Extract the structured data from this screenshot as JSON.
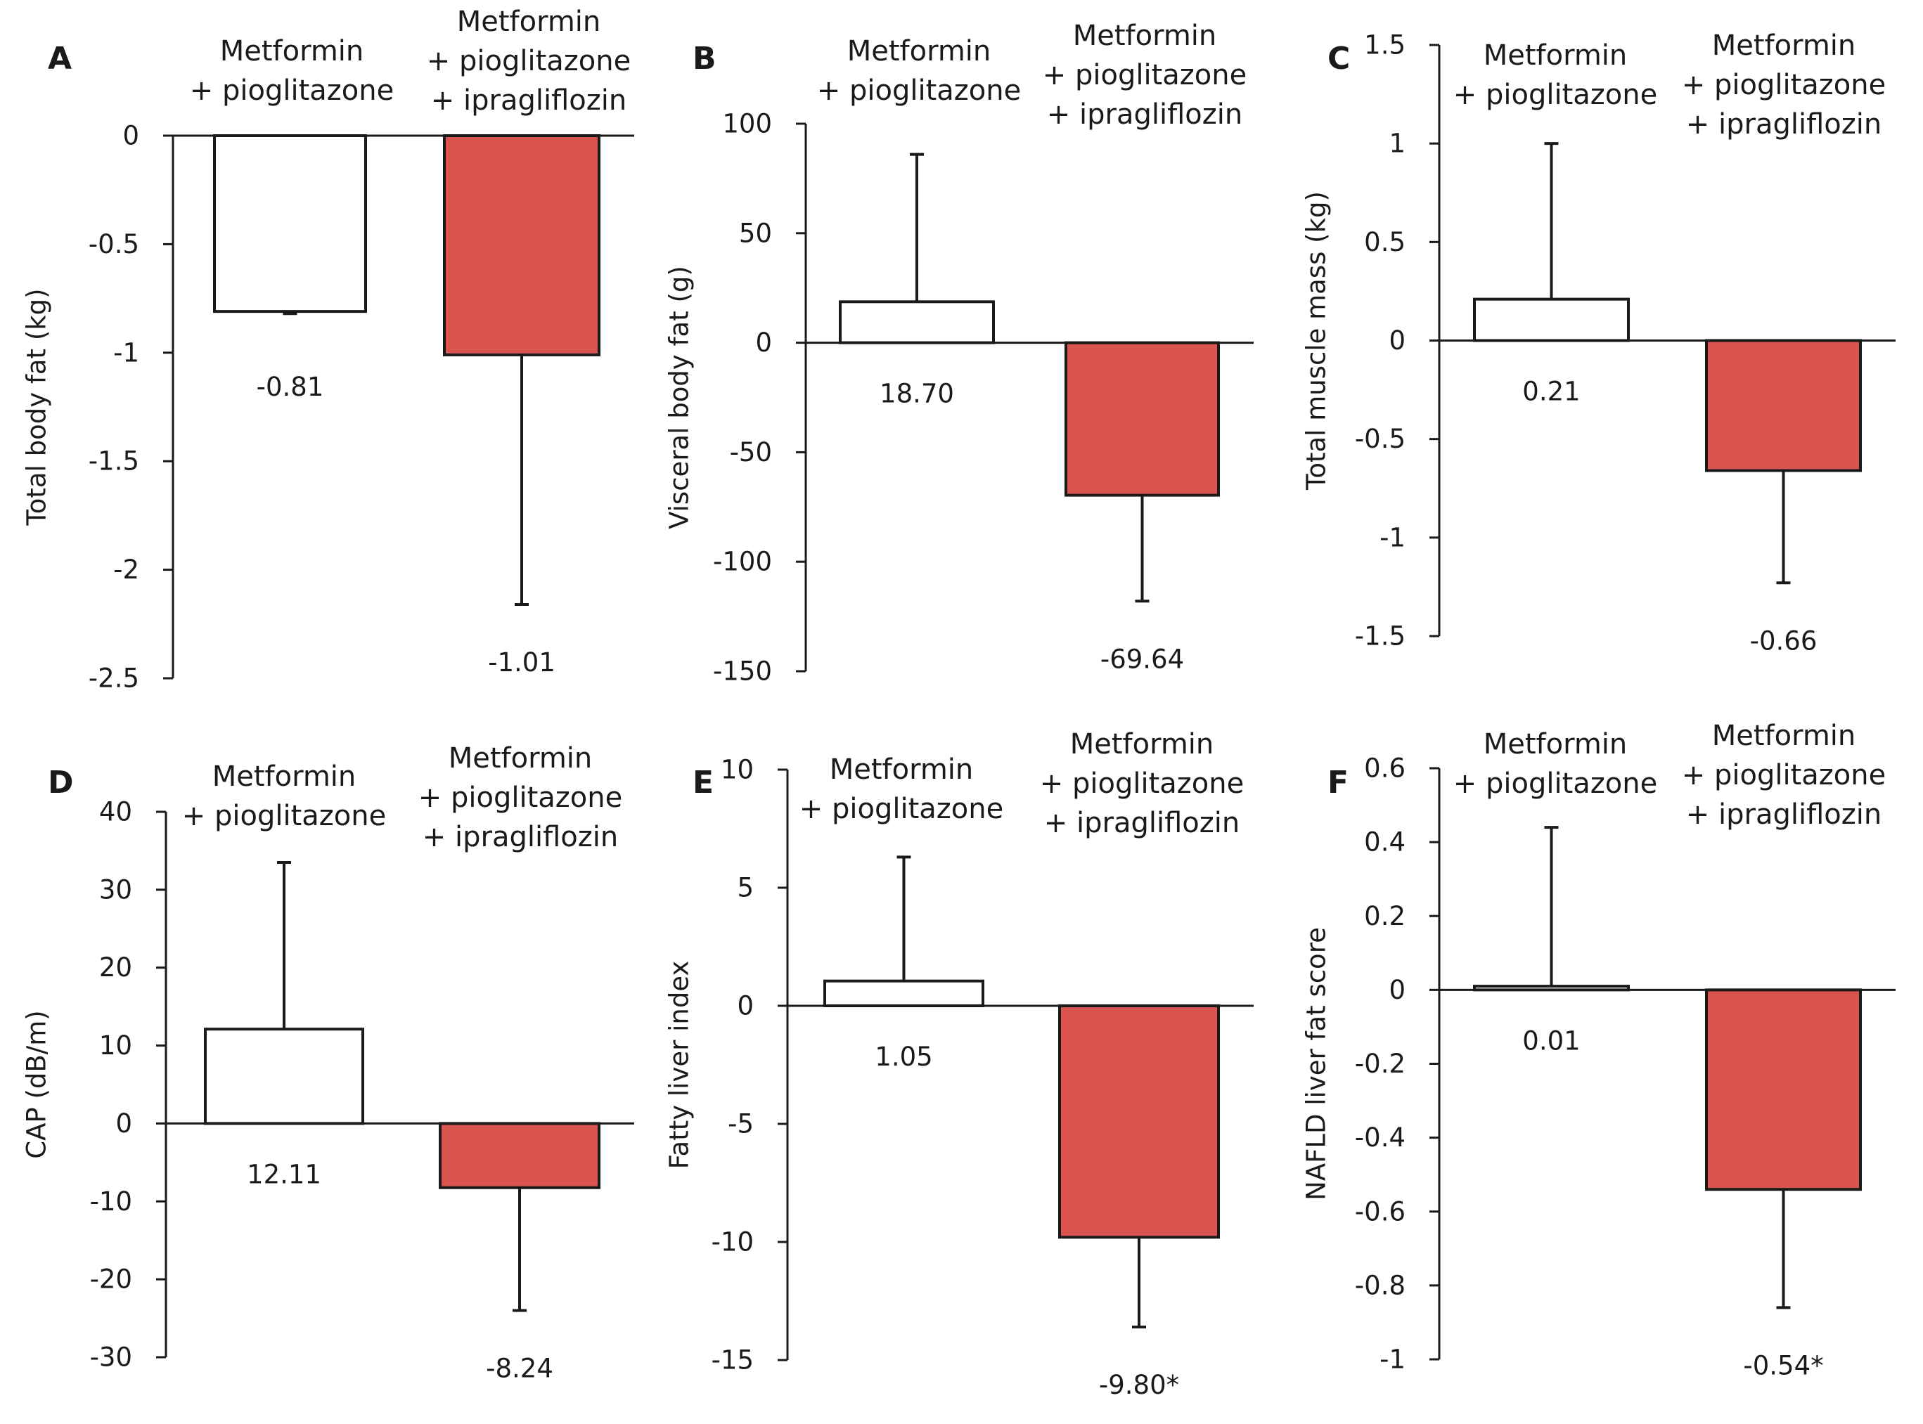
{
  "chart_data": [
    {
      "panel_letter": "A",
      "type": "bar",
      "ylabel": "Total body fat (kg)",
      "ylim": [
        -2.5,
        0
      ],
      "ticks": [
        0,
        -0.5,
        -1,
        -1.5,
        -2,
        -2.5
      ],
      "tick_labels": [
        "0",
        "-0.5",
        "-1",
        "-1.5",
        "-2",
        "-2.5"
      ],
      "categories": [
        [
          "Metformin",
          "+ pioglitazone"
        ],
        [
          "Metformin",
          "+ pioglitazone",
          "+ ipragliflozin"
        ]
      ],
      "values": [
        -0.81,
        -1.01
      ],
      "error_ends": [
        -0.82,
        -2.16
      ],
      "value_labels": [
        "-0.81",
        "-1.01"
      ]
    },
    {
      "panel_letter": "B",
      "type": "bar",
      "ylabel": "Visceral body fat (g)",
      "ylim": [
        -150,
        100
      ],
      "ticks": [
        100,
        50,
        0,
        -50,
        -100,
        -150
      ],
      "tick_labels": [
        "100",
        "50",
        "0",
        "-50",
        "-100",
        "-150"
      ],
      "categories": [
        [
          "Metformin",
          "+ pioglitazone"
        ],
        [
          "Metformin",
          "+ pioglitazone",
          "+ ipragliflozin"
        ]
      ],
      "values": [
        18.7,
        -69.64
      ],
      "error_ends": [
        86,
        -118
      ],
      "value_labels": [
        "18.70",
        "-69.64"
      ]
    },
    {
      "panel_letter": "C",
      "type": "bar",
      "ylabel": "Total muscle mass (kg)",
      "ylim": [
        -1.5,
        1.5
      ],
      "ticks": [
        1.5,
        1,
        0.5,
        0,
        -0.5,
        -1,
        -1.5
      ],
      "tick_labels": [
        "1.5",
        "1",
        "0.5",
        "0",
        "-0.5",
        "-1",
        "-1.5"
      ],
      "categories": [
        [
          "Metformin",
          "+ pioglitazone"
        ],
        [
          "Metformin",
          "+ pioglitazone",
          "+ ipragliflozin"
        ]
      ],
      "values": [
        0.21,
        -0.66
      ],
      "error_ends": [
        1.0,
        -1.23
      ],
      "value_labels": [
        "0.21",
        "-0.66"
      ]
    },
    {
      "panel_letter": "D",
      "type": "bar",
      "ylabel": "CAP (dB/m)",
      "ylim": [
        -30,
        40
      ],
      "ticks": [
        40,
        30,
        20,
        10,
        0,
        -10,
        -20,
        -30
      ],
      "tick_labels": [
        "40",
        "30",
        "20",
        "10",
        "0",
        "-10",
        "-20",
        "-30"
      ],
      "categories": [
        [
          "Metformin",
          "+ pioglitazone"
        ],
        [
          "Metformin",
          "+ pioglitazone",
          "+ ipragliflozin"
        ]
      ],
      "values": [
        12.11,
        -8.24
      ],
      "error_ends": [
        33.5,
        -24
      ],
      "value_labels": [
        "12.11",
        "-8.24"
      ]
    },
    {
      "panel_letter": "E",
      "type": "bar",
      "ylabel": "Fatty liver index",
      "ylim": [
        -15,
        10
      ],
      "ticks": [
        10,
        5,
        0,
        -5,
        -10,
        -15
      ],
      "tick_labels": [
        "10",
        "5",
        "0",
        "-5",
        "-10",
        "-15"
      ],
      "categories": [
        [
          "Metformin",
          "+ pioglitazone"
        ],
        [
          "Metformin",
          "+ pioglitazone",
          "+ ipragliflozin"
        ]
      ],
      "values": [
        1.05,
        -9.8
      ],
      "error_ends": [
        6.3,
        -13.6
      ],
      "value_labels": [
        "1.05",
        "-9.80*"
      ]
    },
    {
      "panel_letter": "F",
      "type": "bar",
      "ylabel": "NAFLD liver fat score",
      "ylim": [
        -1,
        0.6
      ],
      "ticks": [
        0.6,
        0.4,
        0.2,
        0,
        -0.2,
        -0.4,
        -0.6,
        -0.8,
        -1
      ],
      "tick_labels": [
        "0.6",
        "0.4",
        "0.2",
        "0",
        "-0.2",
        "-0.4",
        "-0.6",
        "-0.8",
        "-1"
      ],
      "categories": [
        [
          "Metformin",
          "+ pioglitazone"
        ],
        [
          "Metformin",
          "+ pioglitazone",
          "+ ipragliflozin"
        ]
      ],
      "values": [
        0.01,
        -0.54
      ],
      "error_ends": [
        0.44,
        -0.86
      ],
      "value_labels": [
        "0.01",
        "-0.54*"
      ]
    }
  ],
  "colors": {
    "bar_1_fill": "#ffffff",
    "bar_2_fill": "#d9534f",
    "stroke": "#1a1a1a"
  }
}
